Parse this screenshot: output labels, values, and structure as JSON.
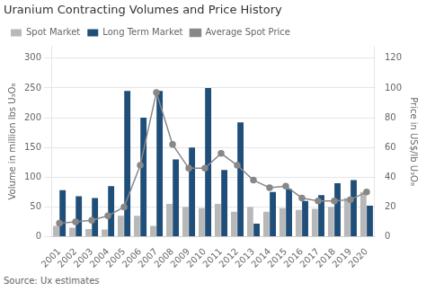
{
  "chart_data": {
    "type": "bar",
    "title": "Uranium Contracting Volumes and Price History",
    "ylabel": "Volume in million lbs U₃O₈",
    "y2label": "Price in US$/lb U₃O₈",
    "annotations": [
      "Source: Ux estimates"
    ],
    "categories": [
      "2001",
      "2002",
      "2003",
      "2004",
      "2005",
      "2006",
      "2007",
      "2008",
      "2009",
      "2010",
      "2011",
      "2012",
      "2013",
      "2014",
      "2015",
      "2016",
      "2017",
      "2018",
      "2019",
      "2020"
    ],
    "series": [
      {
        "name": "Spot Market",
        "color": "#b8b8b8",
        "values": [
          18,
          15,
          13,
          12,
          35,
          35,
          18,
          55,
          50,
          48,
          55,
          42,
          50,
          42,
          48,
          45,
          47,
          50,
          65,
          75
        ]
      },
      {
        "name": "Long Term Market",
        "color": "#1f4e79",
        "values": [
          78,
          68,
          65,
          85,
          245,
          200,
          245,
          130,
          150,
          250,
          112,
          192,
          22,
          75,
          80,
          60,
          70,
          90,
          95,
          52
        ]
      },
      {
        "name": "Average Spot Price",
        "type": "line",
        "axis": "y2",
        "color": "#888888",
        "marker": "circle",
        "values": [
          9,
          10,
          11,
          14,
          20,
          48,
          97,
          62,
          46,
          46,
          56,
          48,
          38,
          33,
          34,
          26,
          24,
          24,
          25,
          30
        ]
      }
    ],
    "ylim": [
      0,
      320
    ],
    "yticks": [
      0,
      50,
      100,
      150,
      200,
      250,
      300
    ],
    "y2lim": [
      0,
      128
    ],
    "y2ticks": [
      0,
      20,
      40,
      60,
      80,
      100,
      120
    ],
    "grid": true,
    "legend": "upper left"
  }
}
